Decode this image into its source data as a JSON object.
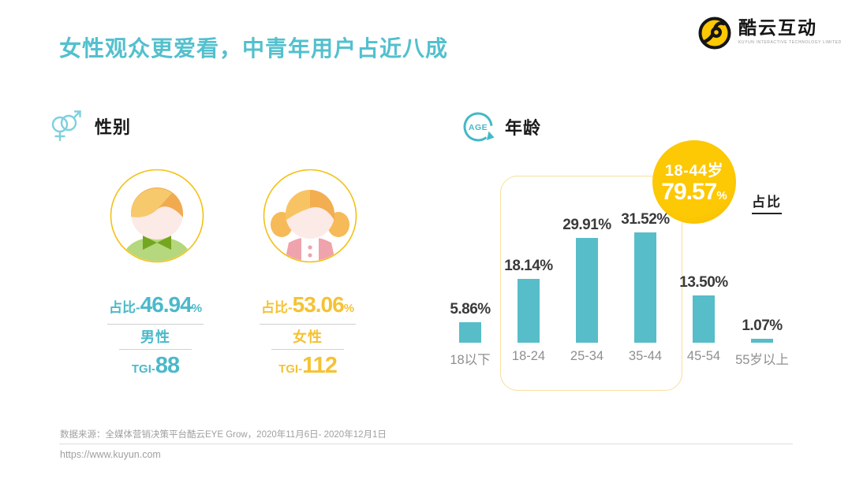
{
  "page": {
    "title": "女性观众更爱看，中青年用户占近八成",
    "footer": {
      "source": "数据来源：全媒体营销决策平台酷云EYE Grow，2020年11月6日- 2020年12月1日",
      "url": "https://www.kuyun.com"
    }
  },
  "logo": {
    "name": "酷云互动",
    "subtitle": "KUYUN INTERACTIVE TECHNOLOGY LIMITED",
    "icon": "kuyun-logo-icon",
    "brand_yellow": "#fdc804"
  },
  "gender_section": {
    "heading": "性别",
    "icon": "gender-symbols-icon",
    "male": {
      "share_label": "占比-",
      "share_value": "46.94",
      "percent_sign": "%",
      "name": "男性",
      "tgi_label": "TGI-",
      "tgi_value": "88",
      "color": "#4bb9c9"
    },
    "female": {
      "share_label": "占比-",
      "share_value": "53.06",
      "percent_sign": "%",
      "name": "女性",
      "tgi_label": "TGI-",
      "tgi_value": "112",
      "color": "#f5c233"
    }
  },
  "age_section": {
    "heading": "年龄",
    "icon": "age-cycle-icon",
    "badge": {
      "range": "18-44岁",
      "value": "79.57",
      "percent_sign": "%",
      "color": "#fdc804"
    },
    "unit_label": "占比"
  },
  "chart_data": {
    "type": "bar",
    "categories": [
      "18以下",
      "18-24",
      "25-34",
      "35-44",
      "45-54",
      "55岁以上"
    ],
    "values": [
      5.86,
      18.14,
      29.91,
      31.52,
      13.5,
      1.07
    ],
    "value_labels": [
      "5.86%",
      "18.14%",
      "29.91%",
      "31.52%",
      "13.50%",
      "1.07%"
    ],
    "bar_color": "#57bdc9",
    "label_color": "#3a3a3a",
    "axis_label_color": "#8f8f8f",
    "highlight": {
      "range": "18-44岁",
      "value": 79.57,
      "categories_covered": [
        "18-24",
        "25-34",
        "35-44"
      ]
    },
    "ylabel": "占比",
    "ylim": [
      0,
      35
    ],
    "grid": false,
    "legend": false
  }
}
